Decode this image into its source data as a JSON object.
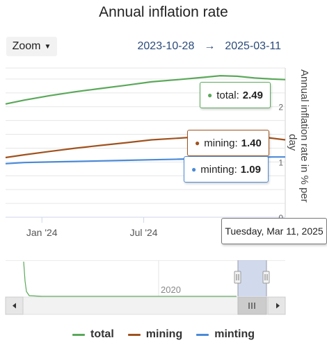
{
  "header": {
    "title": "Annual inflation rate",
    "zoom_label": "Zoom",
    "range_start": "2023-10-28",
    "range_arrow": "→",
    "range_end": "2025-03-11"
  },
  "tooltip_date": "Tuesday, Mar 11, 2025",
  "tooltips": [
    {
      "name": "total",
      "value": "2.49",
      "color": "#5aa85a"
    },
    {
      "name": "mining",
      "value": "1.40",
      "color": "#a0521e"
    },
    {
      "name": "minting",
      "value": "1.09",
      "color": "#4a8ad8"
    }
  ],
  "navigator": {
    "label": "2020"
  },
  "chart_data": {
    "type": "line",
    "title": "Annual inflation rate",
    "ylabel": "Annual inflation rate in % per day",
    "xlabel": "",
    "x_range": [
      "2023-10-28",
      "2025-03-11"
    ],
    "x_ticks": [
      "Jan '24",
      "Jul '24"
    ],
    "y_ticks": [
      "0",
      "1",
      "2"
    ],
    "ylim": [
      0,
      2.7
    ],
    "grid": true,
    "legend_position": "bottom",
    "series": [
      {
        "name": "total",
        "color": "#5aa85a",
        "x": [
          "2023-10-28",
          "2023-12-01",
          "2024-01-15",
          "2024-03-01",
          "2024-04-15",
          "2024-06-01",
          "2024-07-15",
          "2024-09-01",
          "2024-10-15",
          "2024-11-15",
          "2024-12-15",
          "2025-01-15",
          "2025-02-15",
          "2025-03-11"
        ],
        "y": [
          2.05,
          2.12,
          2.2,
          2.27,
          2.33,
          2.39,
          2.45,
          2.49,
          2.53,
          2.56,
          2.55,
          2.52,
          2.5,
          2.49
        ]
      },
      {
        "name": "mining",
        "color": "#a0521e",
        "x": [
          "2023-10-28",
          "2023-12-01",
          "2024-01-15",
          "2024-03-01",
          "2024-04-15",
          "2024-06-01",
          "2024-07-15",
          "2024-09-01",
          "2024-10-15",
          "2024-11-15",
          "2024-12-15",
          "2025-01-15",
          "2025-02-15",
          "2025-03-11"
        ],
        "y": [
          1.08,
          1.13,
          1.19,
          1.25,
          1.3,
          1.35,
          1.4,
          1.43,
          1.46,
          1.49,
          1.5,
          1.47,
          1.43,
          1.4
        ]
      },
      {
        "name": "minting",
        "color": "#4a8ad8",
        "x": [
          "2023-10-28",
          "2023-12-01",
          "2024-01-15",
          "2024-03-01",
          "2024-04-15",
          "2024-06-01",
          "2024-07-15",
          "2024-09-01",
          "2024-10-15",
          "2024-11-15",
          "2024-12-15",
          "2025-01-15",
          "2025-02-15",
          "2025-03-11"
        ],
        "y": [
          0.97,
          0.99,
          1.0,
          1.01,
          1.02,
          1.03,
          1.04,
          1.05,
          1.06,
          1.07,
          1.08,
          1.08,
          1.09,
          1.09
        ]
      }
    ]
  }
}
